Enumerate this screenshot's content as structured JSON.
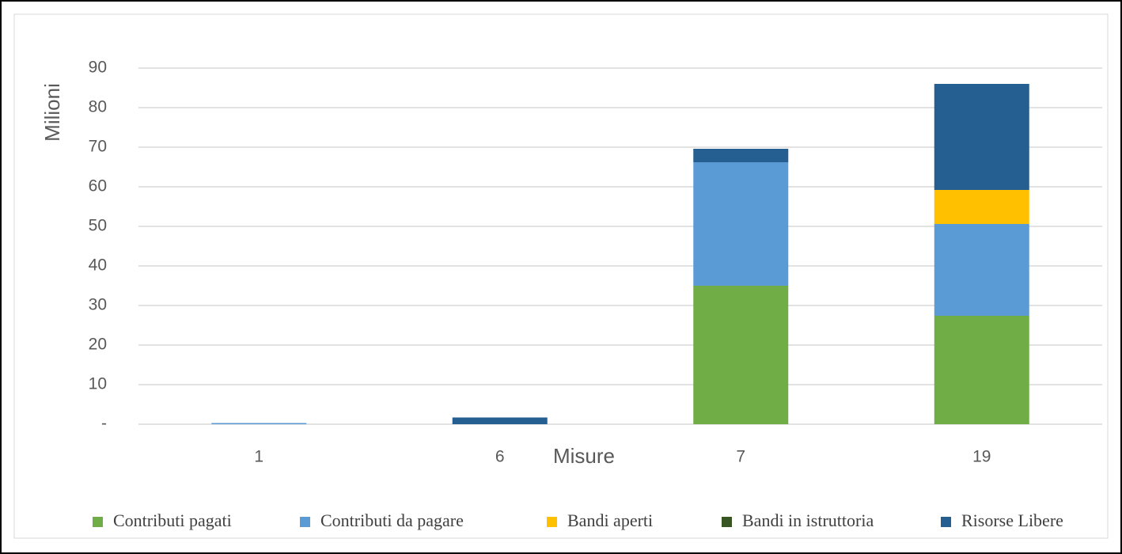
{
  "chart_data": {
    "type": "bar",
    "stacked": true,
    "x_label": "Misure",
    "y_label": "Milioni",
    "categories": [
      "1",
      "6",
      "7",
      "19"
    ],
    "series": [
      {
        "name": "Contributi pagati",
        "color": "#70ad47",
        "values": [
          0,
          0,
          35,
          27.4
        ]
      },
      {
        "name": "Contributi  da pagare",
        "color": "#5b9bd5",
        "values": [
          0.3,
          0,
          31.2,
          23.2
        ]
      },
      {
        "name": "Bandi aperti",
        "color": "#ffc000",
        "values": [
          0,
          0,
          0,
          8.6
        ]
      },
      {
        "name": "Bandi in istruttoria",
        "color": "#375623",
        "values": [
          0,
          0,
          0,
          0
        ]
      },
      {
        "name": "Risorse Libere",
        "color": "#255e91",
        "values": [
          0,
          1.7,
          3.4,
          26.8
        ]
      }
    ],
    "ylim": [
      0,
      90
    ],
    "yticks": [
      {
        "value": 0,
        "label": "-"
      },
      10,
      20,
      30,
      40,
      50,
      60,
      70,
      80,
      90
    ],
    "grid": true,
    "legend": "bottom"
  }
}
